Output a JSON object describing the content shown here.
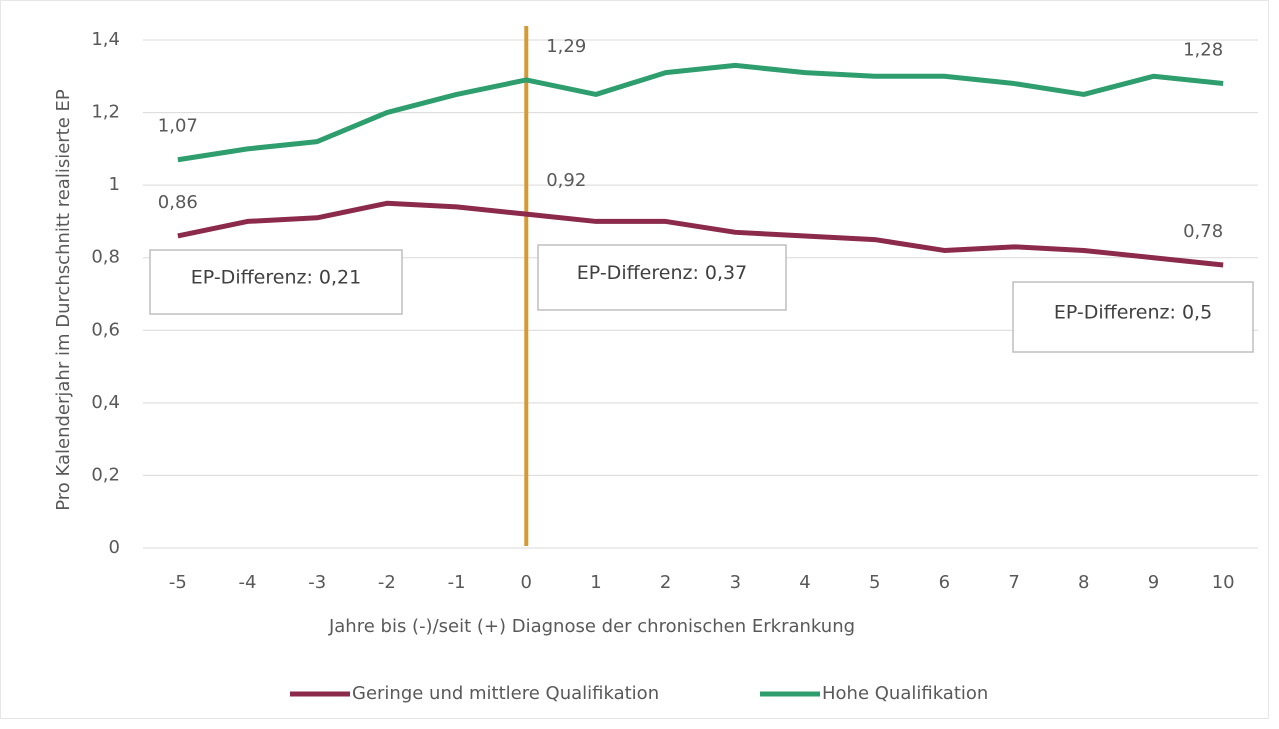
{
  "chart_data": {
    "type": "line",
    "x_label": "Jahre bis (-)/seit (+) Diagnose der chronischen Erkrankung",
    "y_label": "Pro Kalenderjahr im Durchschnitt realisierte EP",
    "categories": [
      "-5",
      "-4",
      "-3",
      "-2",
      "-1",
      "0",
      "1",
      "2",
      "3",
      "4",
      "5",
      "6",
      "7",
      "8",
      "9",
      "10"
    ],
    "series": [
      {
        "name": "Geringe und mittlere Qualifikation",
        "color": "#8b2a4a",
        "values": [
          0.86,
          0.9,
          0.91,
          0.95,
          0.94,
          0.92,
          0.9,
          0.9,
          0.87,
          0.86,
          0.85,
          0.82,
          0.83,
          0.82,
          0.8,
          0.78
        ],
        "value_labels": [
          "0,86",
          null,
          null,
          null,
          null,
          "0,92",
          null,
          null,
          null,
          null,
          null,
          null,
          null,
          null,
          null,
          "0,78"
        ]
      },
      {
        "name": "Hohe Qualifikation",
        "color": "#2e9e6e",
        "values": [
          1.07,
          1.1,
          1.12,
          1.2,
          1.25,
          1.29,
          1.25,
          1.31,
          1.33,
          1.31,
          1.3,
          1.3,
          1.28,
          1.25,
          1.3,
          1.28
        ],
        "value_labels": [
          "1,07",
          null,
          null,
          null,
          null,
          "1,29",
          null,
          null,
          null,
          null,
          null,
          null,
          null,
          null,
          null,
          "1,28"
        ]
      }
    ],
    "ylim": [
      0,
      1.4
    ],
    "yticks": [
      0,
      {
        "value": 0.2,
        "label": "0,2"
      },
      {
        "value": 0.4,
        "label": "0,4"
      },
      {
        "value": 0.6,
        "label": "0,6"
      },
      {
        "value": 0.8,
        "label": "0,8"
      },
      1,
      {
        "value": 1.2,
        "label": "1,2"
      },
      {
        "value": 1.4,
        "label": "1,4"
      }
    ],
    "grid": true,
    "legend": "bottom",
    "reference_line": {
      "category": "0",
      "color": "#d69a35"
    },
    "annotations": [
      "EP-Differenz: 0,21",
      "EP-Differenz: 0,37",
      "EP-Differenz: 0,5"
    ]
  }
}
